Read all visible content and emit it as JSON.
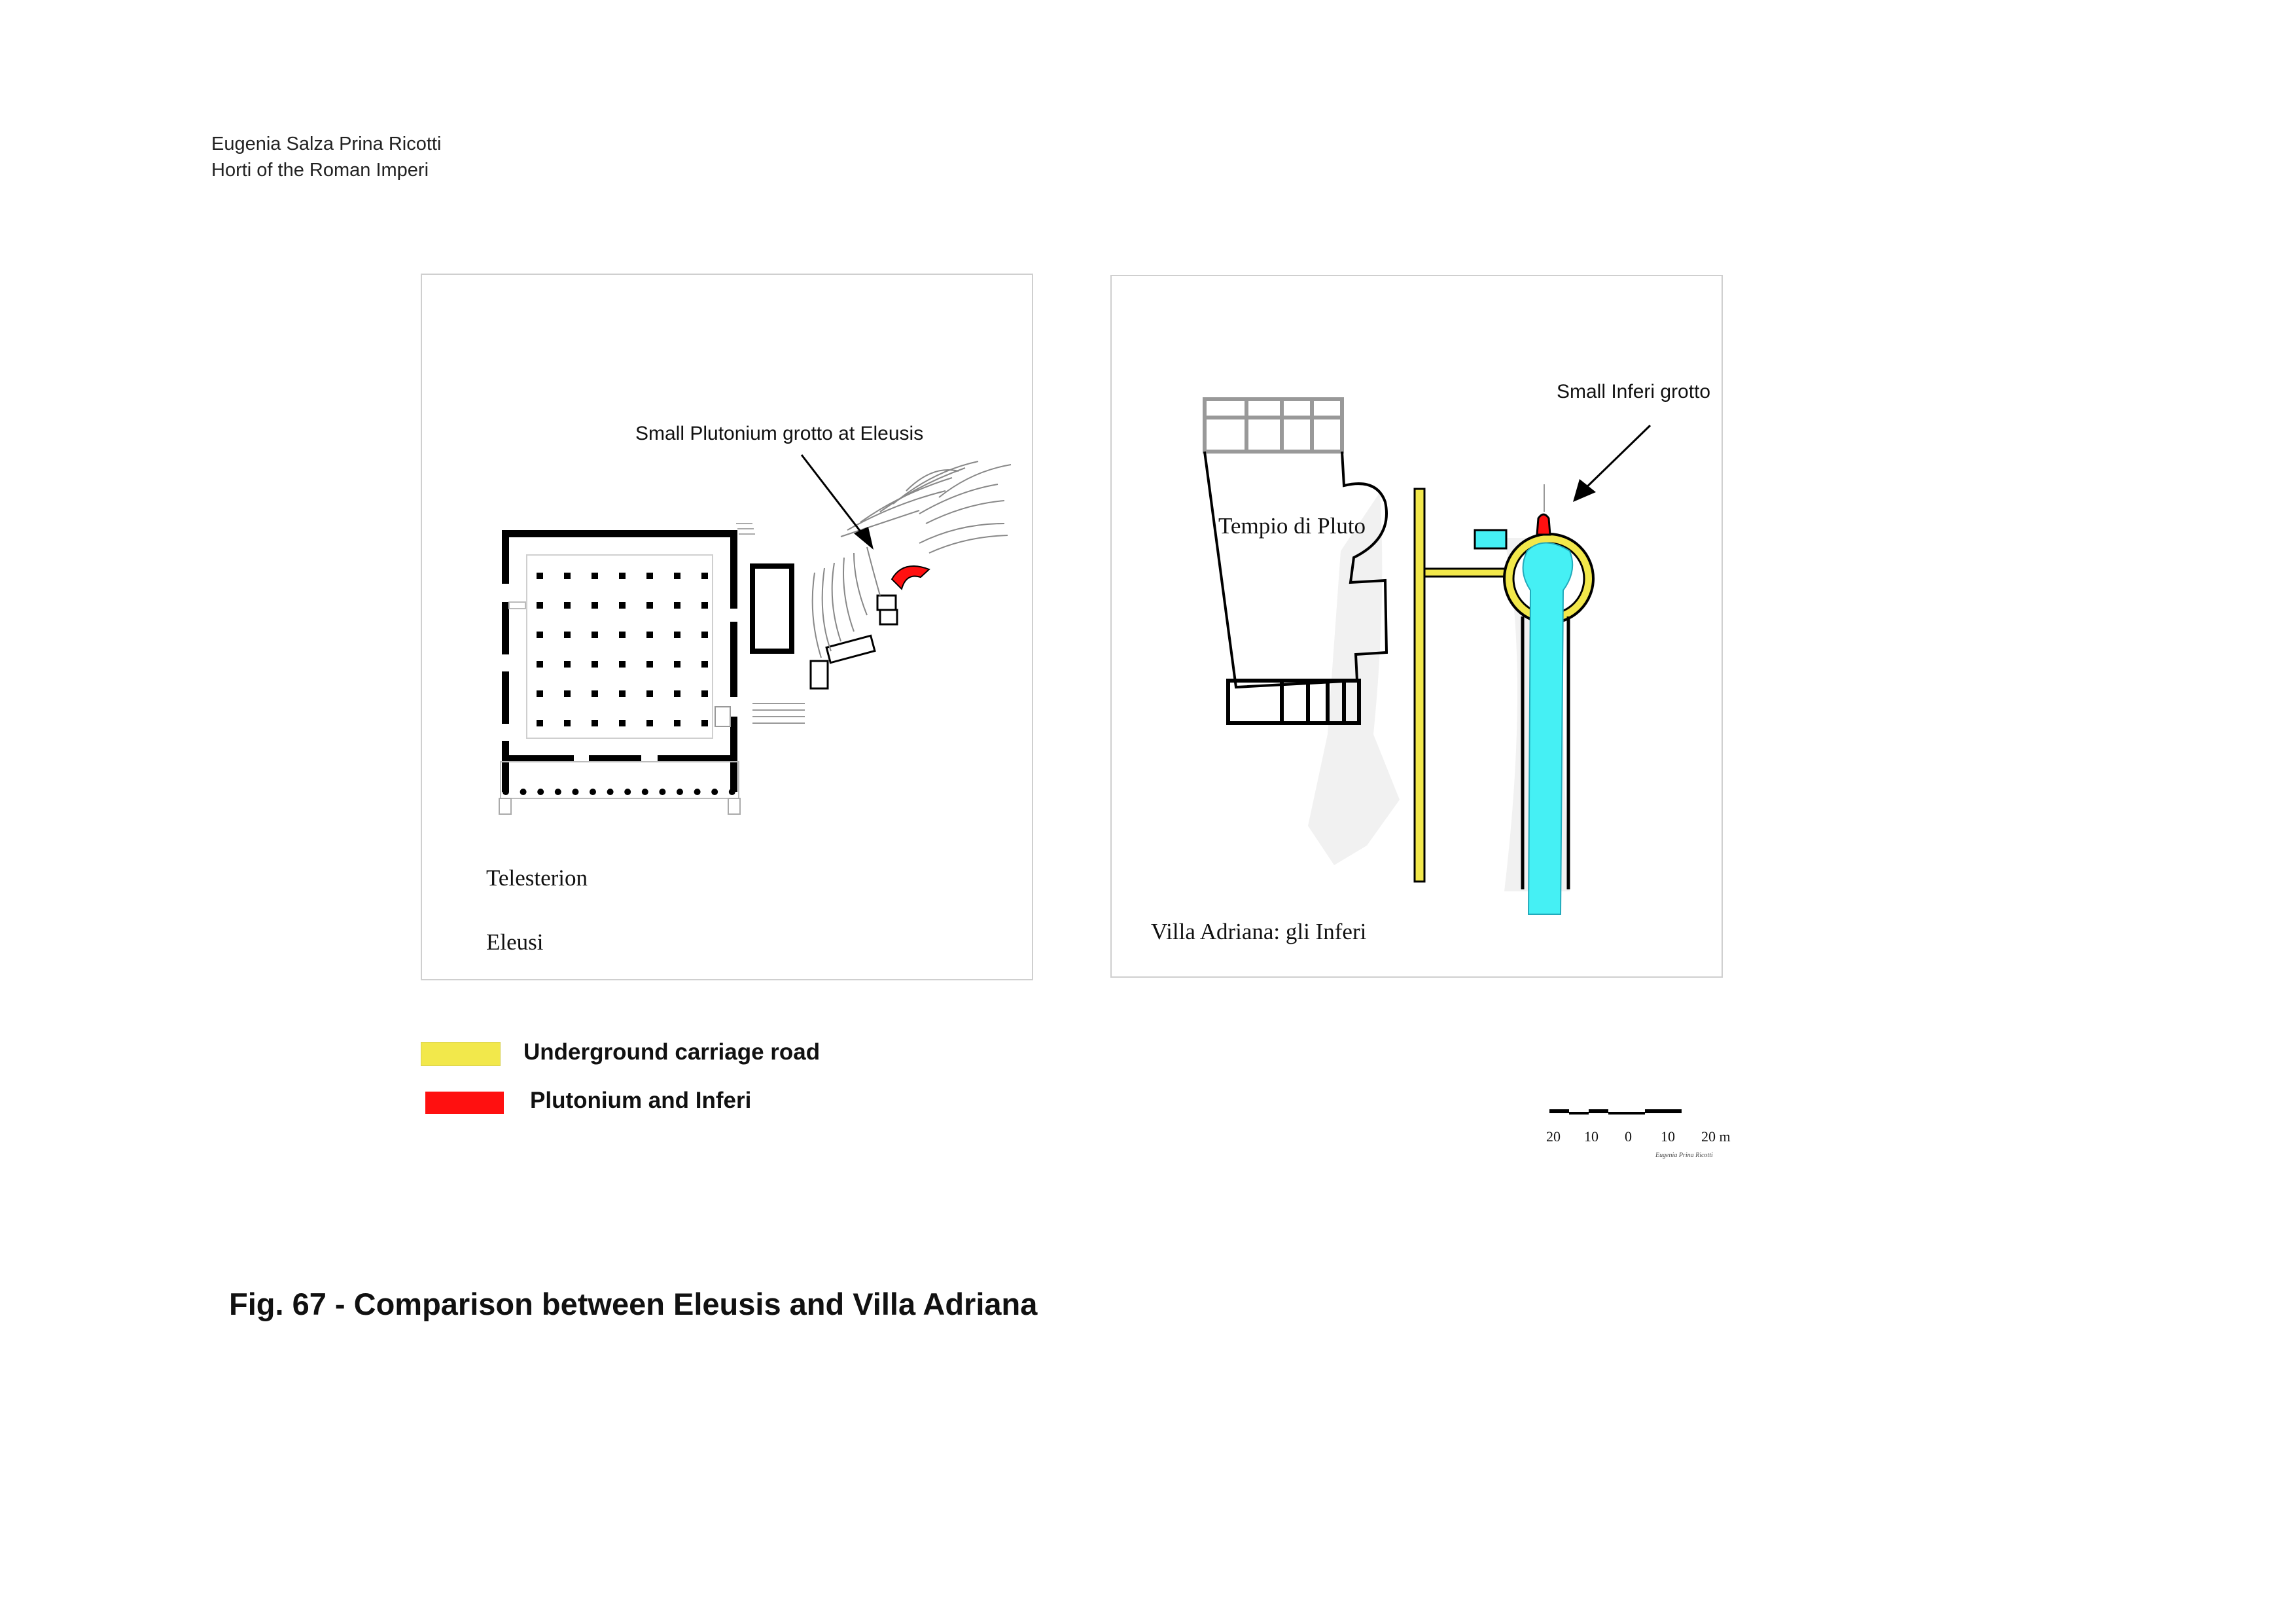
{
  "header": {
    "author": "Eugenia Salza Prina Ricotti",
    "book": "Horti of the Roman Imperi"
  },
  "panel_left": {
    "annotation": "Small Plutonium grotto at Eleusis",
    "building_label": "Telesterion",
    "site_label": "Eleusi"
  },
  "panel_right": {
    "annotation": "Small Inferi grotto",
    "building_label": "Tempio di Pluto",
    "site_label": "Villa Adriana: gli Inferi"
  },
  "legend": {
    "items": [
      {
        "label": "Underground carriage road",
        "color": "#f2e84b"
      },
      {
        "label": "Plutonium and Inferi",
        "color": "#ff1010"
      }
    ]
  },
  "scale_bar": {
    "ticks": [
      "20",
      "10",
      "0",
      "10",
      "20 m"
    ],
    "signature": "Eugenia Prina Ricotti"
  },
  "caption": "Fig. 67 - Comparison between Eleusis and Villa Adriana",
  "colors": {
    "road": "#f2e84b",
    "grotto": "#ff1010",
    "water_channel": "#45f0f4"
  }
}
